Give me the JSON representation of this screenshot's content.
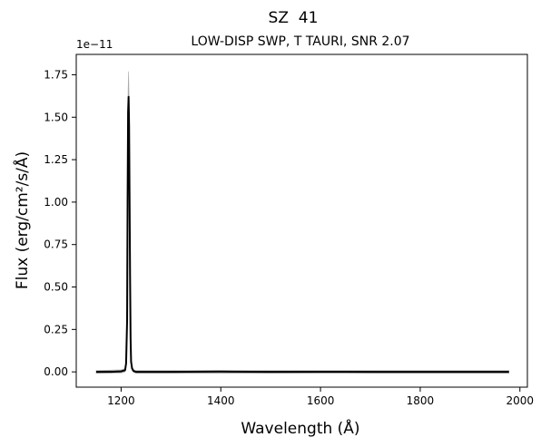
{
  "chart_data": {
    "type": "line",
    "title": "SZ  41",
    "subtitle": "LOW-DISP SWP, T TAURI, SNR 2.07",
    "xlabel": "Wavelength (Å)",
    "ylabel": "Flux (erg/cm²/s/Å)",
    "y_offset_label": "1e−11",
    "xlim": [
      1110,
      2015
    ],
    "ylim": [
      -0.09,
      1.87
    ],
    "y_scale_factor": 1e-11,
    "x_ticks": [
      1200,
      1400,
      1600,
      1800,
      2000
    ],
    "x_tick_labels": [
      "1200",
      "1400",
      "1600",
      "1800",
      "2000"
    ],
    "y_ticks": [
      0.0,
      0.25,
      0.5,
      0.75,
      1.0,
      1.25,
      1.5,
      1.75
    ],
    "y_tick_labels": [
      "0.00",
      "0.25",
      "0.50",
      "0.75",
      "1.00",
      "1.25",
      "1.50",
      "1.75"
    ],
    "grid": false,
    "legend": "none",
    "colors": {
      "flux": "#000000",
      "error_band": "#a9a9a9"
    },
    "series": [
      {
        "role": "flux",
        "x": [
          1150,
          1180,
          1200,
          1208,
          1210,
          1212,
          1213,
          1214,
          1215,
          1216,
          1217,
          1218,
          1219,
          1220,
          1222,
          1225,
          1230,
          1300,
          1400,
          1500,
          1600,
          1700,
          1800,
          1900,
          1978
        ],
        "y": [
          0.0,
          0.0,
          0.003,
          0.01,
          0.05,
          0.3,
          1.0,
          1.53,
          1.62,
          1.45,
          1.0,
          0.55,
          0.2,
          0.06,
          0.02,
          0.005,
          0.0,
          0.0,
          0.002,
          0.0,
          0.001,
          0.0,
          0.0,
          0.0,
          0.0
        ]
      },
      {
        "role": "upper",
        "x": [
          1150,
          1200,
          1208,
          1210,
          1212,
          1213,
          1214,
          1215,
          1216,
          1217,
          1218,
          1219,
          1220,
          1222,
          1225,
          1230,
          1978
        ],
        "y": [
          0.008,
          0.012,
          0.02,
          0.07,
          0.36,
          1.1,
          1.66,
          1.77,
          1.6,
          1.12,
          0.62,
          0.24,
          0.08,
          0.03,
          0.012,
          0.008,
          0.008
        ]
      },
      {
        "role": "lower",
        "x": [
          1150,
          1200,
          1208,
          1210,
          1212,
          1213,
          1214,
          1215,
          1216,
          1217,
          1218,
          1219,
          1220,
          1222,
          1225,
          1230,
          1978
        ],
        "y": [
          -0.008,
          -0.006,
          0.0,
          0.03,
          0.24,
          0.9,
          1.4,
          1.47,
          1.3,
          0.88,
          0.48,
          0.16,
          0.04,
          0.01,
          -0.002,
          -0.008,
          -0.008
        ]
      }
    ]
  }
}
